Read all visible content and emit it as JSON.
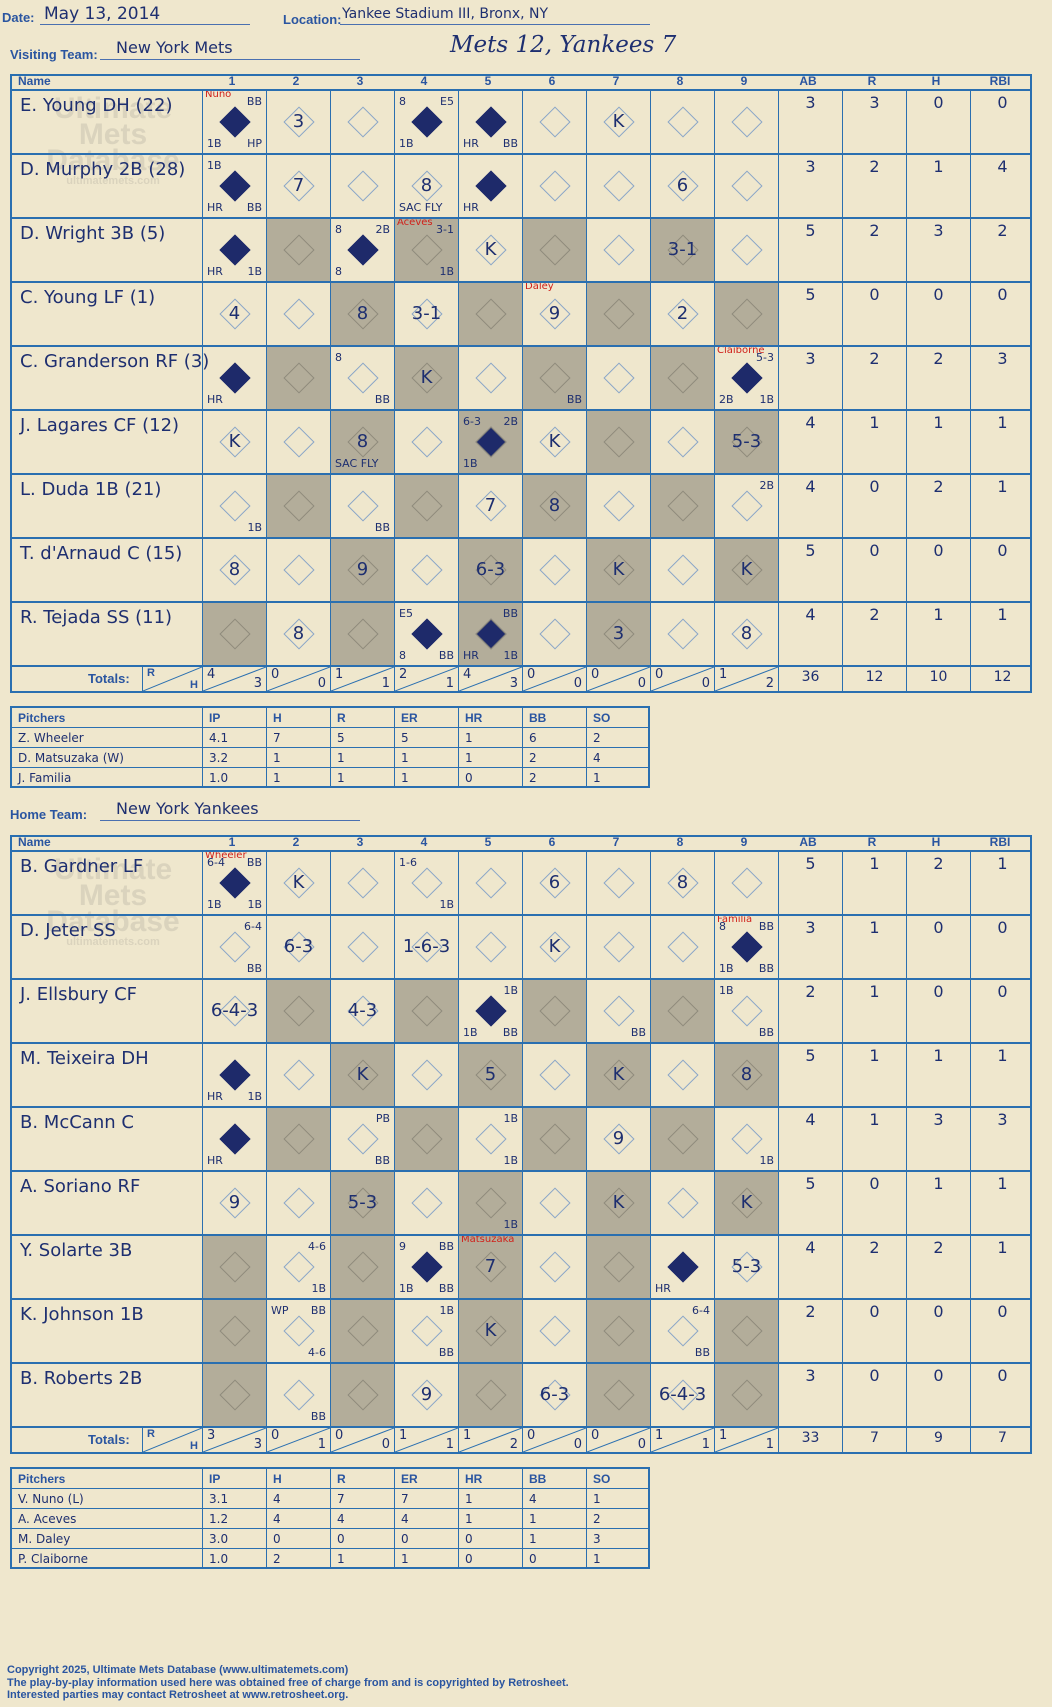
{
  "header": {
    "date_label": "Date:",
    "date": "May 13, 2014",
    "location_label": "Location:",
    "location": "Yankee Stadium III, Bronx, NY",
    "visiting_label": "Visiting Team:",
    "visiting_team": "New York Mets",
    "result": "Mets 12, Yankees 7",
    "home_label": "Home Team:",
    "home_team": "New York Yankees"
  },
  "columns": {
    "name": "Name",
    "innings": [
      "1",
      "2",
      "3",
      "4",
      "5",
      "6",
      "7",
      "8",
      "9"
    ],
    "stats": [
      "AB",
      "R",
      "H",
      "RBI"
    ],
    "totals": "Totals:",
    "r": "R",
    "h": "H"
  },
  "watermark": [
    "Ultimate",
    "Mets",
    "Database",
    "ultimatemets.com"
  ],
  "visitors": {
    "shade": [
      [],
      [],
      [
        1,
        3,
        5,
        7
      ],
      [
        2,
        4,
        6,
        8
      ],
      [
        1,
        3,
        5,
        7
      ],
      [
        2,
        4,
        6,
        8
      ],
      [
        1,
        3,
        5,
        7
      ],
      [
        2,
        4,
        6,
        8
      ],
      [
        0,
        2,
        4,
        6
      ]
    ],
    "batters": [
      {
        "name": "E. Young DH (22)",
        "stats": [
          "3",
          "3",
          "0",
          "0"
        ],
        "ab": {
          "0": {
            "run": true,
            "tr": "BB",
            "bl": "1B",
            "br": "HP",
            "note": "Nuno"
          },
          "1": {
            "play": "3"
          },
          "3": {
            "run": true,
            "tl": "8",
            "tr": "E5",
            "bl": "1B"
          },
          "4": {
            "run": true,
            "bl": "HR",
            "br": "BB"
          },
          "6": {
            "play": "K"
          }
        }
      },
      {
        "name": "D. Murphy 2B (28)",
        "stats": [
          "3",
          "2",
          "1",
          "4"
        ],
        "ab": {
          "0": {
            "run": true,
            "tl": "1B",
            "bl": "HR",
            "br": "BB"
          },
          "1": {
            "play": "7"
          },
          "3": {
            "play": "8",
            "bl": "SAC FLY"
          },
          "4": {
            "run": true,
            "bl": "HR"
          },
          "7": {
            "play": "6"
          }
        }
      },
      {
        "name": "D. Wright 3B (5)",
        "stats": [
          "5",
          "2",
          "3",
          "2"
        ],
        "ab": {
          "0": {
            "run": true,
            "bl": "HR",
            "br": "1B"
          },
          "2": {
            "run": true,
            "tl": "8",
            "tr": "2B",
            "bl": "8"
          },
          "3": {
            "tr": "3-1",
            "br": "1B",
            "note": "Aceves"
          },
          "4": {
            "play": "K"
          },
          "7": {
            "play": "3-1"
          }
        }
      },
      {
        "name": "C. Young LF (1)",
        "stats": [
          "5",
          "0",
          "0",
          "0"
        ],
        "ab": {
          "0": {
            "play": "4"
          },
          "2": {
            "play": "8"
          },
          "3": {
            "play": "3-1"
          },
          "5": {
            "play": "9",
            "note": "Daley"
          },
          "7": {
            "play": "2"
          }
        }
      },
      {
        "name": "C. Granderson RF (3)",
        "stats": [
          "3",
          "2",
          "2",
          "3"
        ],
        "ab": {
          "0": {
            "run": true,
            "bl": "HR"
          },
          "2": {
            "tl": "8",
            "br": "BB"
          },
          "3": {
            "play": "K"
          },
          "5": {
            "br": "BB"
          },
          "8": {
            "run": true,
            "tr": "5-3",
            "bl": "2B",
            "br": "1B",
            "note": "Claiborne"
          }
        }
      },
      {
        "name": "J. Lagares CF (12)",
        "stats": [
          "4",
          "1",
          "1",
          "1"
        ],
        "ab": {
          "0": {
            "play": "K"
          },
          "2": {
            "play": "8",
            "bl": "SAC FLY"
          },
          "4": {
            "run": true,
            "tl": "6-3",
            "tr": "2B",
            "bl": "1B"
          },
          "5": {
            "play": "K"
          },
          "8": {
            "play": "5-3"
          }
        }
      },
      {
        "name": "L. Duda 1B (21)",
        "stats": [
          "4",
          "0",
          "2",
          "1"
        ],
        "ab": {
          "0": {
            "br": "1B"
          },
          "2": {
            "br": "BB"
          },
          "4": {
            "play": "7"
          },
          "5": {
            "play": "8"
          },
          "8": {
            "tr": "2B"
          }
        }
      },
      {
        "name": "T. d'Arnaud C (15)",
        "stats": [
          "5",
          "0",
          "0",
          "0"
        ],
        "ab": {
          "0": {
            "play": "8"
          },
          "2": {
            "play": "9"
          },
          "4": {
            "play": "6-3"
          },
          "6": {
            "play": "K"
          },
          "8": {
            "play": "K"
          }
        }
      },
      {
        "name": "R. Tejada SS (11)",
        "stats": [
          "4",
          "2",
          "1",
          "1"
        ],
        "ab": {
          "1": {
            "play": "8"
          },
          "3": {
            "run": true,
            "tl": "E5",
            "bl": "8",
            "br": "BB"
          },
          "4": {
            "run": true,
            "tr": "BB",
            "bl": "HR",
            "br": "1B"
          },
          "6": {
            "play": "3"
          },
          "8": {
            "play": "8"
          }
        }
      }
    ],
    "totals": [
      [
        "4",
        "3"
      ],
      [
        "0",
        "0"
      ],
      [
        "1",
        "1"
      ],
      [
        "2",
        "1"
      ],
      [
        "4",
        "3"
      ],
      [
        "0",
        "0"
      ],
      [
        "0",
        "0"
      ],
      [
        "0",
        "0"
      ],
      [
        "1",
        "2"
      ]
    ],
    "total_stats": [
      "36",
      "12",
      "10",
      "12"
    ],
    "pitching": {
      "cols": [
        "Pitchers",
        "IP",
        "H",
        "R",
        "ER",
        "HR",
        "BB",
        "SO"
      ],
      "rows": [
        [
          "Z. Wheeler",
          "4.1",
          "7",
          "5",
          "5",
          "1",
          "6",
          "2"
        ],
        [
          "D. Matsuzaka (W)",
          "3.2",
          "1",
          "1",
          "1",
          "1",
          "2",
          "4"
        ],
        [
          "J. Familia",
          "1.0",
          "1",
          "1",
          "1",
          "0",
          "2",
          "1"
        ]
      ]
    }
  },
  "home": {
    "shade": [
      [],
      [],
      [
        1,
        3,
        5,
        7
      ],
      [
        2,
        4,
        6,
        8
      ],
      [
        1,
        3,
        5,
        7
      ],
      [
        2,
        4,
        6,
        8
      ],
      [
        0,
        2,
        4,
        6
      ],
      [
        0,
        2,
        4,
        6,
        8
      ],
      [
        0,
        2,
        4,
        6,
        8
      ]
    ],
    "batters": [
      {
        "name": "B. Gardner LF",
        "stats": [
          "5",
          "1",
          "2",
          "1"
        ],
        "ab": {
          "0": {
            "run": true,
            "tl": "6-4",
            "tr": "BB",
            "bl": "1B",
            "br": "1B",
            "note": "Wheeler"
          },
          "1": {
            "play": "K"
          },
          "3": {
            "tl": "1-6",
            "br": "1B"
          },
          "5": {
            "play": "6"
          },
          "7": {
            "play": "8"
          }
        }
      },
      {
        "name": "D. Jeter SS",
        "stats": [
          "3",
          "1",
          "0",
          "0"
        ],
        "ab": {
          "0": {
            "tr": "6-4",
            "br": "BB"
          },
          "1": {
            "play": "6-3"
          },
          "3": {
            "play": "1-6-3"
          },
          "5": {
            "play": "K"
          },
          "8": {
            "run": true,
            "tl": "8",
            "tr": "BB",
            "bl": "1B",
            "br": "BB",
            "note": "Familia"
          }
        }
      },
      {
        "name": "J. Ellsbury CF",
        "stats": [
          "2",
          "1",
          "0",
          "0"
        ],
        "ab": {
          "0": {
            "play": "6-4-3"
          },
          "2": {
            "play": "4-3"
          },
          "4": {
            "run": true,
            "tr": "1B",
            "bl": "1B",
            "br": "BB"
          },
          "6": {
            "br": "BB"
          },
          "8": {
            "tl": "1B",
            "br": "BB"
          }
        }
      },
      {
        "name": "M. Teixeira DH",
        "stats": [
          "5",
          "1",
          "1",
          "1"
        ],
        "ab": {
          "0": {
            "run": true,
            "bl": "HR",
            "br": "1B"
          },
          "2": {
            "play": "K"
          },
          "4": {
            "play": "5"
          },
          "6": {
            "play": "K"
          },
          "8": {
            "play": "8"
          }
        }
      },
      {
        "name": "B. McCann C",
        "stats": [
          "4",
          "1",
          "3",
          "3"
        ],
        "ab": {
          "0": {
            "run": true,
            "bl": "HR"
          },
          "2": {
            "tr": "PB",
            "br": "BB"
          },
          "4": {
            "tr": "1B",
            "br": "1B"
          },
          "6": {
            "play": "9"
          },
          "8": {
            "br": "1B"
          }
        }
      },
      {
        "name": "A. Soriano RF",
        "stats": [
          "5",
          "0",
          "1",
          "1"
        ],
        "ab": {
          "0": {
            "play": "9"
          },
          "2": {
            "play": "5-3"
          },
          "4": {
            "br": "1B"
          },
          "6": {
            "play": "K"
          },
          "8": {
            "play": "K"
          }
        }
      },
      {
        "name": "Y. Solarte 3B",
        "stats": [
          "4",
          "2",
          "2",
          "1"
        ],
        "ab": {
          "1": {
            "tr": "4-6",
            "br": "1B"
          },
          "3": {
            "run": true,
            "tl": "9",
            "tr": "BB",
            "bl": "1B",
            "br": "BB"
          },
          "4": {
            "play": "7",
            "note": "Matsuzaka"
          },
          "7": {
            "run": true,
            "bl": "HR"
          },
          "8": {
            "play": "5-3"
          }
        }
      },
      {
        "name": "K. Johnson 1B",
        "stats": [
          "2",
          "0",
          "0",
          "0"
        ],
        "ab": {
          "1": {
            "tl": "WP",
            "tr": "BB",
            "br": "4-6"
          },
          "3": {
            "tr": "1B",
            "br": "BB"
          },
          "4": {
            "play": "K"
          },
          "7": {
            "tr": "6-4",
            "br": "BB"
          }
        }
      },
      {
        "name": "B. Roberts 2B",
        "stats": [
          "3",
          "0",
          "0",
          "0"
        ],
        "ab": {
          "1": {
            "br": "BB"
          },
          "3": {
            "play": "9"
          },
          "5": {
            "play": "6-3"
          },
          "7": {
            "play": "6-4-3"
          }
        }
      }
    ],
    "totals": [
      [
        "3",
        "3"
      ],
      [
        "0",
        "1"
      ],
      [
        "0",
        "0"
      ],
      [
        "1",
        "1"
      ],
      [
        "1",
        "2"
      ],
      [
        "0",
        "0"
      ],
      [
        "0",
        "0"
      ],
      [
        "1",
        "1"
      ],
      [
        "1",
        "1"
      ]
    ],
    "total_stats": [
      "33",
      "7",
      "9",
      "7"
    ],
    "pitching": {
      "cols": [
        "Pitchers",
        "IP",
        "H",
        "R",
        "ER",
        "HR",
        "BB",
        "SO"
      ],
      "rows": [
        [
          "V. Nuno (L)",
          "3.1",
          "4",
          "7",
          "7",
          "1",
          "4",
          "1"
        ],
        [
          "A. Aceves",
          "1.2",
          "4",
          "4",
          "4",
          "1",
          "1",
          "2"
        ],
        [
          "M. Daley",
          "3.0",
          "0",
          "0",
          "0",
          "0",
          "1",
          "3"
        ],
        [
          "P. Claiborne",
          "1.0",
          "2",
          "1",
          "1",
          "0",
          "0",
          "1"
        ]
      ]
    }
  },
  "footer": [
    "Copyright 2025, Ultimate Mets Database (www.ultimatemets.com)",
    "The play-by-play information used here was obtained free of charge from and is copyrighted by Retrosheet.",
    "Interested parties may contact Retrosheet at www.retrosheet.org."
  ]
}
